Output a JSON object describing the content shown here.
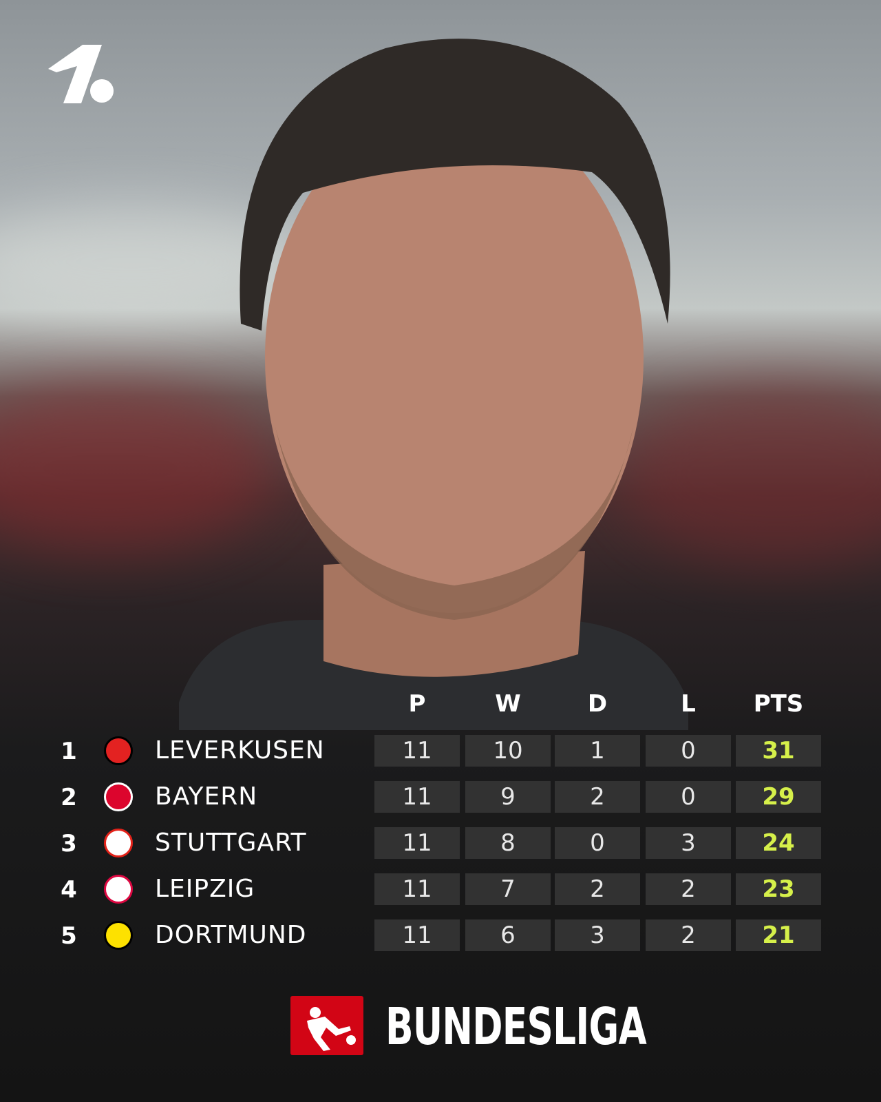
{
  "header": {
    "columns": [
      "P",
      "W",
      "D",
      "L",
      "PTS"
    ]
  },
  "table": {
    "rows": [
      {
        "rank": 1,
        "team": "LEVERKUSEN",
        "p": 11,
        "w": 10,
        "d": 1,
        "l": 0,
        "pts": 31
      },
      {
        "rank": 2,
        "team": "BAYERN",
        "p": 11,
        "w": 9,
        "d": 2,
        "l": 0,
        "pts": 29
      },
      {
        "rank": 3,
        "team": "STUTTGART",
        "p": 11,
        "w": 8,
        "d": 0,
        "l": 3,
        "pts": 24
      },
      {
        "rank": 4,
        "team": "LEIPZIG",
        "p": 11,
        "w": 7,
        "d": 2,
        "l": 2,
        "pts": 23
      },
      {
        "rank": 5,
        "team": "DORTMUND",
        "p": 11,
        "w": 6,
        "d": 3,
        "l": 2,
        "pts": 21
      }
    ]
  },
  "footer": {
    "brand": "BUNDESLIGA"
  }
}
